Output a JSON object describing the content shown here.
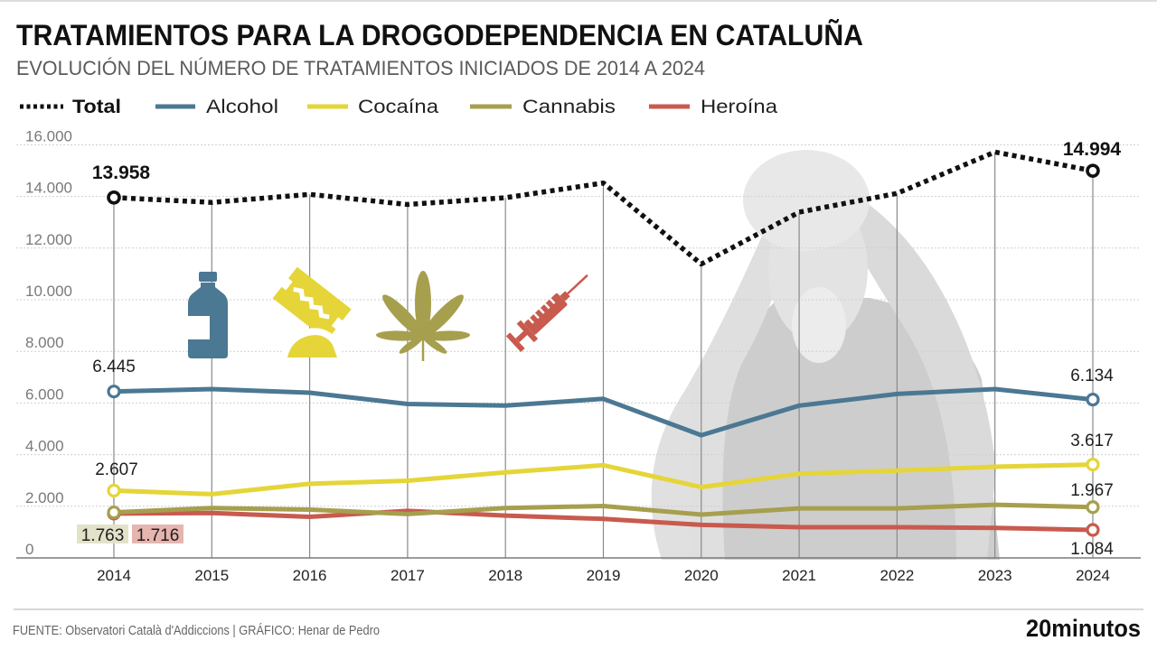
{
  "header": {
    "title": "TRATAMIENTOS PARA LA DROGODEPENDENCIA EN CATALUÑA",
    "subtitle": "EVOLUCIÓN DEL NÚMERO DE TRATAMIENTOS INICIADOS DE 2014 A 2024"
  },
  "chart_data": {
    "type": "line",
    "title": "TRATAMIENTOS PARA LA DROGODEPENDENCIA EN CATALUÑA",
    "subtitle": "EVOLUCIÓN DEL NÚMERO DE TRATAMIENTOS INICIADOS DE 2014 A 2024",
    "xlabel": "",
    "ylabel": "",
    "categories": [
      "2014",
      "2015",
      "2016",
      "2017",
      "2018",
      "2019",
      "2020",
      "2021",
      "2022",
      "2023",
      "2024"
    ],
    "ylim": [
      0,
      16000
    ],
    "yticks": [
      0,
      2000,
      4000,
      6000,
      8000,
      10000,
      12000,
      14000,
      16000
    ],
    "ytick_labels": [
      "0",
      "2.000",
      "4.000",
      "6.000",
      "8.000",
      "10.000",
      "12.000",
      "14.000",
      "16.000"
    ],
    "grid": true,
    "legend_position": "top-left",
    "series": [
      {
        "name": "Total",
        "color": "#111111",
        "style": "dotted",
        "values": [
          13958,
          13770,
          14080,
          13690,
          13950,
          14520,
          11380,
          13390,
          14120,
          15720,
          14994
        ]
      },
      {
        "name": "Alcohol",
        "color": "#4b7893",
        "style": "solid",
        "values": [
          6445,
          6540,
          6400,
          5960,
          5900,
          6160,
          4750,
          5900,
          6350,
          6540,
          6134
        ]
      },
      {
        "name": "Cocaína",
        "color": "#e5d538",
        "style": "solid",
        "values": [
          2607,
          2470,
          2870,
          2990,
          3310,
          3590,
          2740,
          3260,
          3380,
          3530,
          3617
        ]
      },
      {
        "name": "Cannabis",
        "color": "#a69f4e",
        "style": "solid",
        "values": [
          1763,
          1930,
          1870,
          1700,
          1930,
          2010,
          1680,
          1920,
          1920,
          2060,
          1967
        ]
      },
      {
        "name": "Heroína",
        "color": "#c85a4e",
        "style": "solid",
        "values": [
          1716,
          1740,
          1590,
          1820,
          1640,
          1510,
          1280,
          1190,
          1190,
          1160,
          1084
        ]
      }
    ],
    "annotations": [
      {
        "series": "Total",
        "category": "2014",
        "text": "13.958"
      },
      {
        "series": "Total",
        "category": "2024",
        "text": "14.994"
      },
      {
        "series": "Alcohol",
        "category": "2014",
        "text": "6.445"
      },
      {
        "series": "Alcohol",
        "category": "2024",
        "text": "6.134"
      },
      {
        "series": "Cocaína",
        "category": "2014",
        "text": "2.607"
      },
      {
        "series": "Cocaína",
        "category": "2024",
        "text": "3.617"
      },
      {
        "series": "Cannabis",
        "category": "2014",
        "text": "1.763",
        "bg": "#e2e2c9"
      },
      {
        "series": "Heroína",
        "category": "2014",
        "text": "1.716",
        "bg": "#e6b5af"
      },
      {
        "series": "Cannabis",
        "category": "2024",
        "text": "1.967"
      },
      {
        "series": "Heroína",
        "category": "2024",
        "text": "1.084"
      }
    ]
  },
  "icons": [
    {
      "name": "bottle-icon",
      "series": "Alcohol"
    },
    {
      "name": "razor-blade-icon",
      "series": "Cocaína"
    },
    {
      "name": "cannabis-leaf-icon",
      "series": "Cannabis"
    },
    {
      "name": "syringe-icon",
      "series": "Heroína"
    }
  ],
  "footer": {
    "source": "FUENTE: Observatori Català d'Addiccions | GRÁFICO: Henar de Pedro",
    "brand": "20minutos"
  }
}
